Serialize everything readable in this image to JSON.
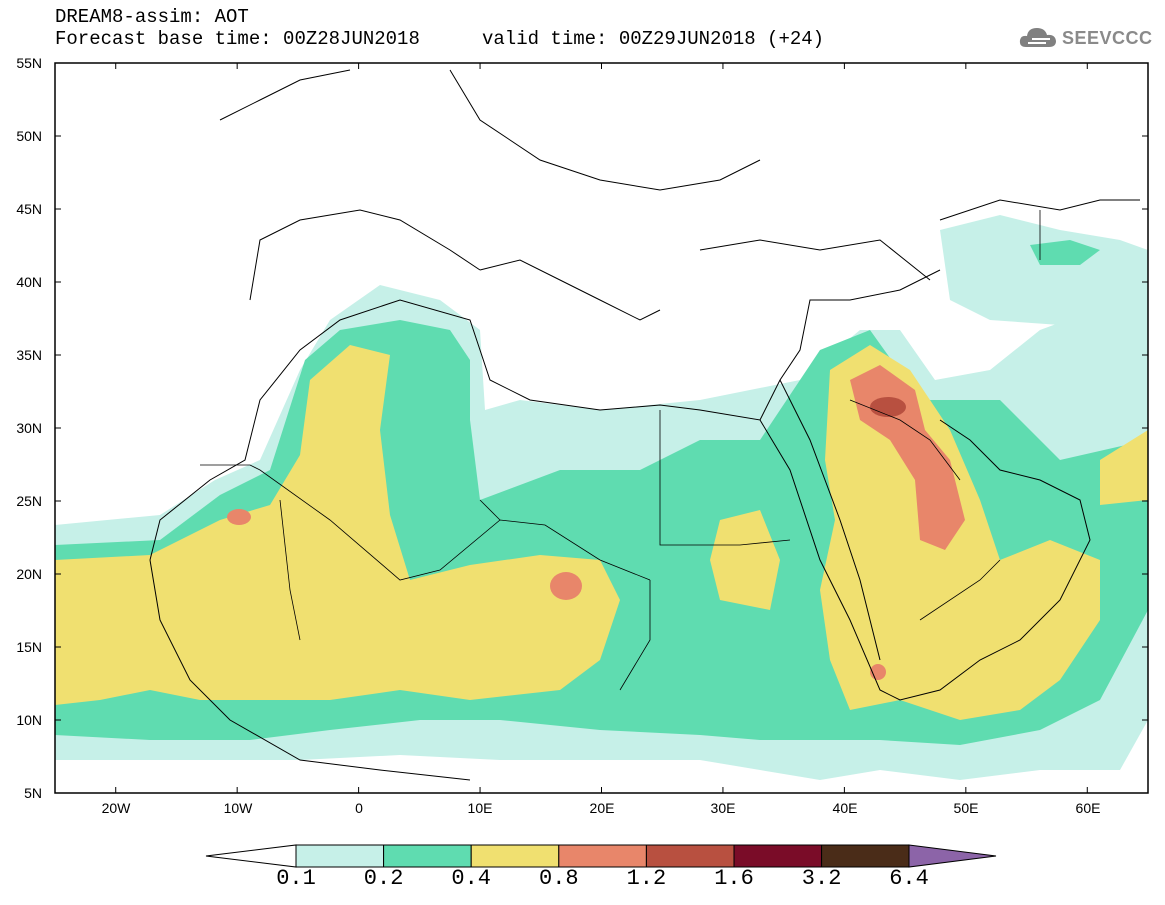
{
  "header": {
    "title": "DREAM8-assim: AOT",
    "base_time": "Forecast base time: 00Z28JUN2018",
    "valid_time": "valid time: 00Z29JUN2018 (+24)",
    "logo_text": "SEEVCCC"
  },
  "map": {
    "projection": "cylindrical equidistant",
    "lon_range": [
      -25,
      65
    ],
    "lat_range": [
      5,
      55
    ],
    "lat_ticks": [
      "55N",
      "50N",
      "45N",
      "40N",
      "35N",
      "30N",
      "25N",
      "20N",
      "15N",
      "10N",
      "5N"
    ],
    "lon_ticks": [
      "20W",
      "10W",
      "0",
      "10E",
      "20E",
      "30E",
      "40E",
      "50E",
      "60E"
    ],
    "colors": {
      "c1": "#c6f0e8",
      "c2": "#5fdcb0",
      "c3": "#f0e070",
      "c4": "#e8866a",
      "c5": "#b85040",
      "c6": "#7a0c28",
      "c7": "#4a2c18",
      "c8": "#8c64a8"
    }
  },
  "colorbar": {
    "labels": [
      "0.1",
      "0.2",
      "0.4",
      "0.8",
      "1.2",
      "1.6",
      "3.2",
      "6.4"
    ],
    "colors": [
      "#c6f0e8",
      "#5fdcb0",
      "#f0e070",
      "#e8866a",
      "#b85040",
      "#7a0c28",
      "#4a2c18"
    ],
    "under_color": "#ffffff",
    "over_color": "#8c64a8"
  }
}
